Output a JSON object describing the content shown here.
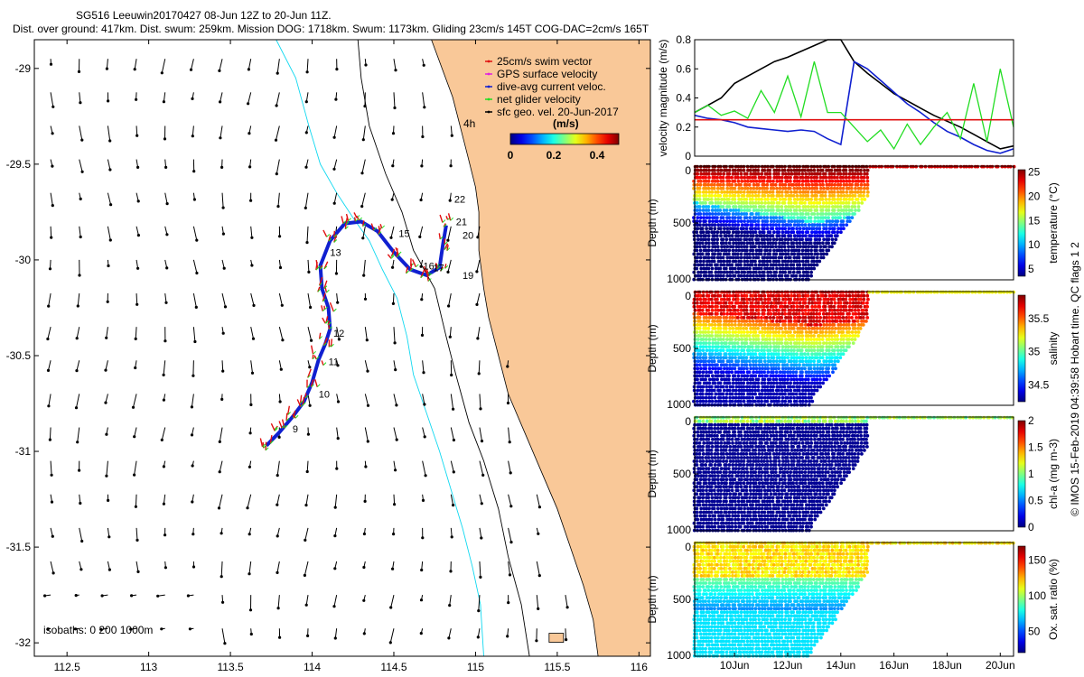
{
  "header": {
    "line1": "SG516 Leeuwin20170427 08-Jun 12Z to 20-Jun 11Z.",
    "line2": "Dist. over ground: 417km. Dist. swum: 259km. Mission DOG: 1718km. Swum: 1173km. Gliding 23cm/s 145T COG-DAC=2cm/s 165T"
  },
  "side_note": "© IMOS 15-Feb-2019 04:39:58 Hobart time. QC flags 1  2",
  "colors": {
    "land": "#f9c898",
    "track": "#1020d0",
    "red": "#e01010",
    "cyan": "#10d8f0",
    "green": "#22dd22"
  },
  "chart_data": [
    {
      "type": "map",
      "name": "track-map",
      "x_ticks": [
        "112.5",
        "113",
        "113.5",
        "114",
        "114.5",
        "115",
        "115.5",
        "116"
      ],
      "y_ticks": [
        "-29",
        "-29.5",
        "-30",
        "-30.5",
        "-31",
        "-31.5",
        "-32"
      ],
      "xlim": [
        112.3,
        116.07
      ],
      "ylim": [
        -32.07,
        -28.85
      ],
      "legend": [
        {
          "label": "25cm/s swim vector",
          "color": "#e01010"
        },
        {
          "label": "GPS surface velocity",
          "color": "#e020e0"
        },
        {
          "label": "dive-avg current veloc.",
          "color": "#1020d0"
        },
        {
          "label": "net glider velocity",
          "color": "#22dd22"
        },
        {
          "label": "sfc geo. vel. 20-Jun-2017",
          "color": "#000000"
        }
      ],
      "colorbar": {
        "title": "(m/s)",
        "ticks": [
          "0",
          "0.2",
          "0.4"
        ],
        "range": [
          0,
          0.5
        ],
        "label_left": "4h"
      },
      "isobaths_label": "isobaths: 0   200  1000m",
      "track": [
        [
          113.72,
          -30.97
        ],
        [
          113.8,
          -30.9
        ],
        [
          113.88,
          -30.82
        ],
        [
          113.95,
          -30.74
        ],
        [
          114.0,
          -30.64
        ],
        [
          114.04,
          -30.52
        ],
        [
          114.08,
          -30.44
        ],
        [
          114.11,
          -30.36
        ],
        [
          114.1,
          -30.25
        ],
        [
          114.06,
          -30.15
        ],
        [
          114.05,
          -30.03
        ],
        [
          114.11,
          -29.9
        ],
        [
          114.2,
          -29.81
        ],
        [
          114.3,
          -29.8
        ],
        [
          114.4,
          -29.85
        ],
        [
          114.5,
          -29.96
        ],
        [
          114.6,
          -30.05
        ],
        [
          114.7,
          -30.08
        ],
        [
          114.78,
          -30.04
        ],
        [
          114.8,
          -29.92
        ],
        [
          114.82,
          -29.82
        ]
      ],
      "day_labels": [
        {
          "text": "9",
          "lon": 113.88,
          "lat": -30.9
        },
        {
          "text": "10",
          "lon": 114.04,
          "lat": -30.72
        },
        {
          "text": "11",
          "lon": 114.1,
          "lat": -30.55
        },
        {
          "text": "12",
          "lon": 114.13,
          "lat": -30.4
        },
        {
          "text": "13",
          "lon": 114.11,
          "lat": -29.98
        },
        {
          "text": "15",
          "lon": 114.53,
          "lat": -29.88
        },
        {
          "text": "16",
          "lon": 114.68,
          "lat": -30.05
        },
        {
          "text": "17",
          "lon": 114.74,
          "lat": -30.06
        },
        {
          "text": "19",
          "lon": 114.92,
          "lat": -30.1
        },
        {
          "text": "20",
          "lon": 114.92,
          "lat": -29.89
        },
        {
          "text": "21",
          "lon": 114.88,
          "lat": -29.82
        },
        {
          "text": "22",
          "lon": 114.87,
          "lat": -29.7
        }
      ]
    },
    {
      "type": "line",
      "name": "velocity-magnitude",
      "ylabel": "velocity magnitude (m/s)",
      "ylim": [
        0,
        0.8
      ],
      "yticks": [
        "0",
        "0.2",
        "0.4",
        "0.6",
        "0.8"
      ],
      "xlim": [
        8.5,
        20.5
      ],
      "series": [
        {
          "name": "distance-black",
          "color": "#000000",
          "x": [
            8.5,
            9,
            9.5,
            10,
            10.5,
            11,
            11.5,
            12,
            12.5,
            13,
            13.5,
            14,
            14.5,
            15,
            15.5,
            16,
            16.5,
            17,
            17.5,
            18,
            18.5,
            19,
            19.5,
            20,
            20.5
          ],
          "y": [
            0.3,
            0.35,
            0.4,
            0.5,
            0.55,
            0.6,
            0.65,
            0.68,
            0.72,
            0.76,
            0.8,
            0.8,
            0.65,
            0.57,
            0.5,
            0.43,
            0.38,
            0.33,
            0.28,
            0.24,
            0.2,
            0.15,
            0.1,
            0.05,
            0.07
          ]
        },
        {
          "name": "dive-avg-blue",
          "color": "#1020d0",
          "x": [
            8.5,
            9,
            9.5,
            10,
            10.5,
            11,
            11.5,
            12,
            12.5,
            13,
            13.5,
            14,
            14.5,
            15,
            15.5,
            16,
            16.5,
            17,
            17.5,
            18,
            18.5,
            19,
            19.5,
            20,
            20.5
          ],
          "y": [
            0.28,
            0.26,
            0.25,
            0.23,
            0.2,
            0.19,
            0.18,
            0.17,
            0.18,
            0.17,
            0.12,
            0.08,
            0.65,
            0.6,
            0.52,
            0.44,
            0.36,
            0.3,
            0.23,
            0.17,
            0.13,
            0.08,
            0.04,
            0.02,
            0.05
          ]
        },
        {
          "name": "net-glider-green",
          "color": "#22dd22",
          "x": [
            8.5,
            9,
            9.5,
            10,
            10.5,
            11,
            11.5,
            12,
            12.5,
            13,
            13.5,
            14,
            14.5,
            15,
            15.5,
            16,
            16.5,
            17,
            17.5,
            18,
            18.5,
            19,
            19.5,
            20,
            20.5
          ],
          "y": [
            0.3,
            0.35,
            0.28,
            0.31,
            0.26,
            0.45,
            0.3,
            0.55,
            0.27,
            0.65,
            0.3,
            0.3,
            0.2,
            0.1,
            0.18,
            0.05,
            0.22,
            0.08,
            0.2,
            0.3,
            0.12,
            0.5,
            0.1,
            0.6,
            0.2
          ]
        },
        {
          "name": "swim-red",
          "color": "#e01010",
          "x": [
            8.5,
            20.5
          ],
          "y": [
            0.25,
            0.25
          ]
        }
      ]
    },
    {
      "type": "scatter",
      "name": "temperature-section",
      "ylabel": "Depth (m)",
      "cbar_label": "temperature (°C)",
      "cbar_ticks": [
        "5",
        "10",
        "15",
        "20",
        "25"
      ],
      "crange": [
        3.5,
        25.5
      ],
      "yticks": [
        "0",
        "500",
        "1000"
      ],
      "xlim": [
        8.5,
        20.5
      ],
      "deep_end": 15.0
    },
    {
      "type": "scatter",
      "name": "salinity-section",
      "ylabel": "Depth (m)",
      "cbar_label": "salinity",
      "cbar_ticks": [
        "34.5",
        "35",
        "35.5"
      ],
      "crange": [
        34.25,
        35.85
      ],
      "yticks": [
        "0",
        "500",
        "1000"
      ],
      "xlim": [
        8.5,
        20.5
      ],
      "deep_end": 15.0
    },
    {
      "type": "scatter",
      "name": "chl-a-section",
      "ylabel": "Depth (m)",
      "cbar_label": "chl-a (mg m-3)",
      "cbar_ticks": [
        "0",
        "0.5",
        "1",
        "1.5",
        "2"
      ],
      "crange": [
        0,
        2
      ],
      "yticks": [
        "0",
        "500",
        "1000"
      ],
      "xlim": [
        8.5,
        20.5
      ],
      "deep_end": 15.0
    },
    {
      "type": "scatter",
      "name": "oxygen-section",
      "ylabel": "Depth (m)",
      "cbar_label": "Ox. sat. ratio (%)",
      "cbar_ticks": [
        "50",
        "100",
        "150"
      ],
      "crange": [
        20,
        170
      ],
      "yticks": [
        "0",
        "500",
        "1000"
      ],
      "xlim": [
        8.5,
        20.5
      ],
      "deep_end": 15.0,
      "x_ticks": [
        "10Jun",
        "12Jun",
        "14Jun",
        "16Jun",
        "18Jun",
        "20Jun"
      ]
    }
  ]
}
